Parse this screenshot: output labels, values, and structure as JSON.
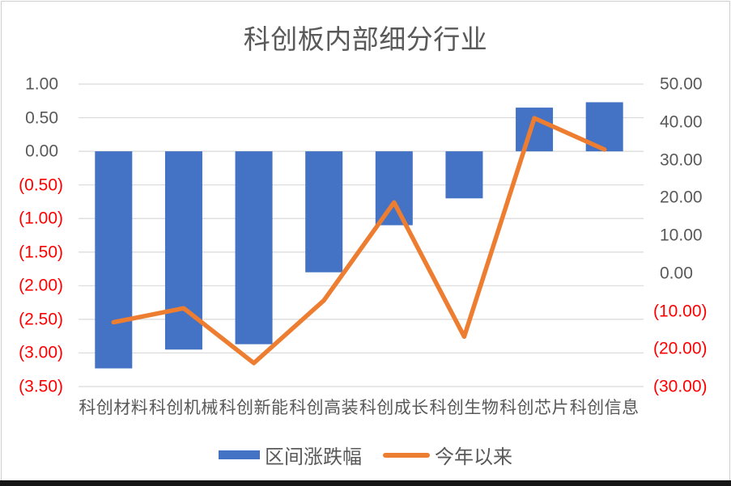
{
  "window": {
    "background": "#ffffff",
    "border_color": "#cfcfcf",
    "bottom_edge_color": "#161616"
  },
  "chart_data": {
    "type": "combo-bar-line",
    "title": "科创板内部细分行业",
    "categories": [
      "科创材料",
      "科创机械",
      "科创新能",
      "科创高装",
      "科创成长",
      "科创生物",
      "科创芯片",
      "科创信息"
    ],
    "series": [
      {
        "name": "区间涨跌幅",
        "type": "bar",
        "axis": "left",
        "color": "#4472C4",
        "values": [
          -3.23,
          -2.95,
          -2.87,
          -1.8,
          -1.1,
          -0.7,
          0.65,
          0.73
        ]
      },
      {
        "name": "今年以来",
        "type": "line",
        "axis": "right",
        "color": "#ED7D31",
        "values": [
          -13.0,
          -9.3,
          -23.8,
          -7.2,
          18.7,
          -16.8,
          41.0,
          32.7
        ]
      }
    ],
    "left_axis": {
      "max": 1.0,
      "min": -3.5,
      "step": 0.5,
      "tick_labels": [
        "1.00",
        "0.50",
        "0.00",
        "(0.50)",
        "(1.00)",
        "(1.50)",
        "(2.00)",
        "(2.50)",
        "(3.00)",
        "(3.50)"
      ]
    },
    "right_axis": {
      "max": 50,
      "min": -30,
      "step": 10,
      "tick_labels": [
        "50.00",
        "40.00",
        "30.00",
        "20.00",
        "10.00",
        "0.00",
        "(10.00)",
        "(20.00)",
        "(30.00)"
      ]
    },
    "grid": true,
    "legend_position": "bottom",
    "axis_label_color": "#595959",
    "negative_label_color": "#FF0000",
    "gridline_color": "#D9D9D9",
    "title_color": "#595959"
  }
}
